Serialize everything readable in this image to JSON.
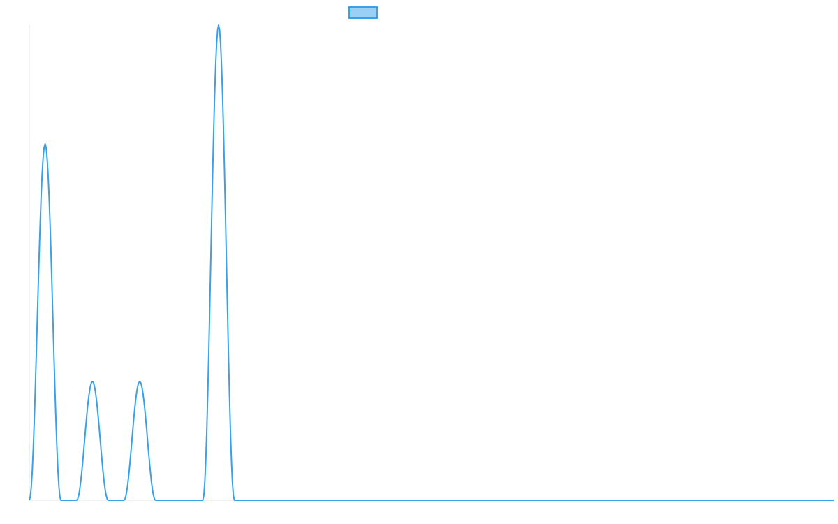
{
  "chart_data": {
    "type": "line",
    "title": "",
    "xlabel": "",
    "ylabel": "",
    "legend_position": "top-center",
    "grid": false,
    "x": [
      0,
      1,
      2,
      3,
      4,
      5,
      6,
      7,
      8,
      9,
      10,
      11,
      12,
      13,
      14,
      15,
      16,
      17,
      18,
      19,
      20,
      21,
      22,
      23,
      24,
      25,
      26,
      27,
      28,
      29,
      30,
      31,
      32,
      33,
      34,
      35,
      36,
      37,
      38,
      39,
      40,
      41,
      42,
      43,
      44,
      45,
      46,
      47,
      48,
      49,
      50,
      51
    ],
    "xlim": [
      0,
      51
    ],
    "ylim": [
      0,
      4
    ],
    "series": [
      {
        "color": "#36a2eb",
        "fill": "#9ad0f5",
        "values": [
          0,
          3,
          0,
          0,
          1,
          0,
          0,
          1,
          0,
          0,
          0,
          0,
          4,
          0,
          0,
          0,
          0,
          0,
          0,
          0,
          0,
          0,
          0,
          0,
          0,
          0,
          0,
          0,
          0,
          0,
          0,
          0,
          0,
          0,
          0,
          0,
          0,
          0,
          0,
          0,
          0,
          0,
          0,
          0,
          0,
          0,
          0,
          0,
          0,
          0,
          0,
          0
        ]
      }
    ]
  }
}
